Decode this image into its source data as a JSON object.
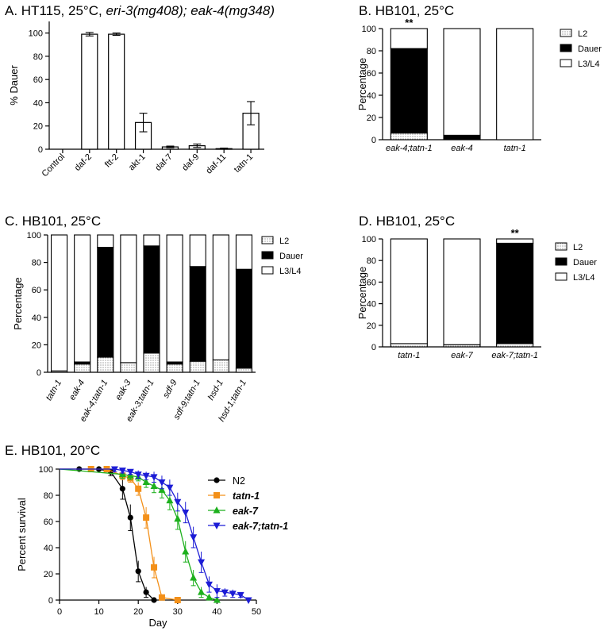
{
  "chart_data": [
    {
      "panel": "A",
      "type": "bar",
      "title_plain": "A. HT115, 25°C, ",
      "title_italic": "eri-3(mg408); eak-4(mg348)",
      "xlabel": "",
      "ylabel": "% Dauer",
      "ylim": [
        0,
        110
      ],
      "yticks": [
        "0",
        "20",
        "40",
        "60",
        "80",
        "100"
      ],
      "categories": [
        "Control",
        "daf-2",
        "ftt-2",
        "akt-1",
        "daf-7",
        "daf-9",
        "daf-11",
        "tatn-1"
      ],
      "values": [
        0,
        99,
        99,
        23,
        2,
        3,
        0.5,
        31
      ],
      "errors": [
        0,
        1.5,
        1,
        8,
        0.7,
        1.5,
        0.5,
        10
      ]
    },
    {
      "panel": "B",
      "type": "bar",
      "stacked": true,
      "title": "B. HB101, 25°C",
      "ylabel": "Percentage",
      "ylim": [
        0,
        100
      ],
      "yticks": [
        "0",
        "20",
        "40",
        "60",
        "80",
        "100"
      ],
      "categories": [
        "eak-4;tatn-1",
        "eak-4",
        "tatn-1"
      ],
      "series": [
        {
          "name": "L2",
          "values": [
            6,
            0,
            0
          ]
        },
        {
          "name": "Dauer",
          "values": [
            76,
            4,
            0
          ]
        },
        {
          "name": "L3/L4",
          "values": [
            18,
            96,
            100
          ]
        }
      ],
      "annotations": [
        {
          "category": "eak-4;tatn-1",
          "text": "**"
        }
      ],
      "legend": "right"
    },
    {
      "panel": "C",
      "type": "bar",
      "stacked": true,
      "title": "C. HB101, 25°C",
      "ylabel": "Percentage",
      "ylim": [
        0,
        100
      ],
      "yticks": [
        "0",
        "20",
        "40",
        "60",
        "80",
        "100"
      ],
      "categories": [
        "tatn-1",
        "eak-4",
        "eak-4;tatn-1",
        "eak-3",
        "eak-3;tatn-1",
        "sdf-9",
        "sdf-9;tatn-1",
        "hsd-1",
        "hsd-1;tatn-1"
      ],
      "series": [
        {
          "name": "L2",
          "values": [
            1,
            6,
            11,
            7,
            14,
            6,
            8,
            9,
            3
          ]
        },
        {
          "name": "Dauer",
          "values": [
            0,
            1.5,
            80,
            0,
            78,
            1.5,
            69,
            0,
            72
          ]
        },
        {
          "name": "L3/L4",
          "values": [
            99,
            92.5,
            9,
            93,
            8,
            92.5,
            23,
            91,
            25
          ]
        }
      ],
      "legend": "right"
    },
    {
      "panel": "D",
      "type": "bar",
      "stacked": true,
      "title": "D. HB101, 25°C",
      "ylabel": "Percentage",
      "ylim": [
        0,
        100
      ],
      "yticks": [
        "0",
        "20",
        "40",
        "60",
        "80",
        "100"
      ],
      "categories": [
        "tatn-1",
        "eak-7",
        "eak-7;tatn-1"
      ],
      "series": [
        {
          "name": "L2",
          "values": [
            3,
            2,
            3
          ]
        },
        {
          "name": "Dauer",
          "values": [
            0,
            0,
            93
          ]
        },
        {
          "name": "L3/L4",
          "values": [
            97,
            98,
            4
          ]
        }
      ],
      "annotations": [
        {
          "category": "eak-7;tatn-1",
          "text": "**"
        }
      ],
      "legend": "right"
    },
    {
      "panel": "E",
      "type": "line",
      "title": "E. HB101, 20°C",
      "xlabel": "Day",
      "ylabel": "Percent survival",
      "xlim": [
        0,
        50
      ],
      "ylim": [
        0,
        100
      ],
      "xticks": [
        "0",
        "10",
        "20",
        "30",
        "40",
        "50"
      ],
      "yticks": [
        "0",
        "20",
        "40",
        "60",
        "80",
        "100"
      ],
      "legend": "top-right",
      "series": [
        {
          "name": "N2",
          "color": "#000000",
          "marker": "circle",
          "x": [
            5,
            10,
            13,
            16,
            18,
            20,
            22,
            24
          ],
          "y": [
            100,
            100,
            98,
            85,
            63,
            22,
            6,
            0
          ],
          "err": [
            0,
            0,
            3,
            8,
            10,
            8,
            4,
            0
          ]
        },
        {
          "name": "tatn-1",
          "color": "#f39019",
          "marker": "square",
          "x": [
            8,
            12,
            16,
            18,
            20,
            22,
            24,
            26,
            30
          ],
          "y": [
            100,
            100,
            95,
            93,
            85,
            63,
            25,
            2,
            0
          ],
          "err": [
            0,
            0,
            3,
            3,
            5,
            8,
            8,
            2,
            0
          ]
        },
        {
          "name": "eak-7",
          "color": "#1db01d",
          "marker": "triangle-up",
          "x": [
            16,
            18,
            20,
            22,
            24,
            26,
            28,
            30,
            32,
            34,
            36,
            38,
            40
          ],
          "y": [
            96,
            95,
            94,
            90,
            87,
            84,
            76,
            62,
            37,
            17,
            6,
            2,
            0
          ],
          "err": [
            3,
            3,
            3,
            4,
            5,
            6,
            7,
            8,
            8,
            6,
            4,
            2,
            0
          ]
        },
        {
          "name": "eak-7;tatn-1",
          "color": "#1c1cd6",
          "marker": "triangle-down",
          "x": [
            14,
            16,
            18,
            20,
            22,
            24,
            26,
            28,
            30,
            32,
            34,
            36,
            38,
            40,
            42,
            44,
            46,
            48
          ],
          "y": [
            100,
            99,
            98,
            96,
            95,
            94,
            90,
            86,
            75,
            67,
            48,
            29,
            12,
            7,
            6,
            5,
            4,
            0
          ],
          "err": [
            2,
            2,
            2,
            3,
            3,
            4,
            5,
            6,
            7,
            8,
            8,
            8,
            6,
            5,
            3,
            3,
            2,
            0
          ]
        }
      ]
    }
  ]
}
